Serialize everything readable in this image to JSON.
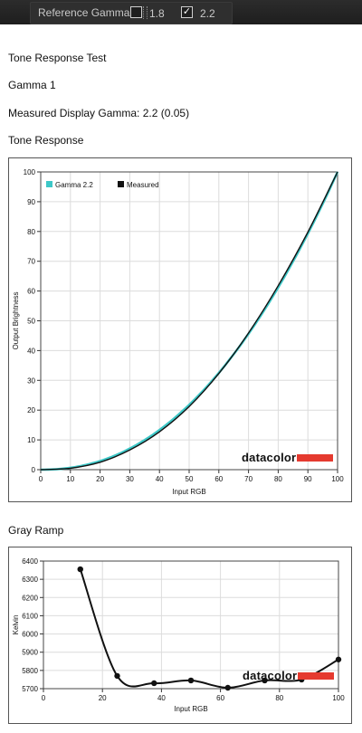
{
  "toolbar": {
    "reference_gamma_label": "Reference Gamma:",
    "option_18": {
      "label": "1.8",
      "checked": false
    },
    "option_22": {
      "label": "2.2",
      "checked": true,
      "check_glyph": "✓"
    }
  },
  "sections": {
    "test_title": "Tone Response Test",
    "gamma_title": "Gamma 1",
    "measured_text": "Measured Display Gamma: 2.2 (0.05)",
    "tone_title": "Tone Response",
    "gray_title": "Gray Ramp"
  },
  "logo_text": "datacolor",
  "colors": {
    "reference": "#3cc7c7",
    "measured": "#111111",
    "logo_bar": "#e53a2f"
  },
  "chart_data": [
    {
      "type": "line",
      "xlabel": "Input RGB",
      "ylabel": "Output Brightness",
      "xlim": [
        0,
        100
      ],
      "ylim": [
        0,
        100
      ],
      "x_ticks": [
        "0",
        "10",
        "20",
        "30",
        "40",
        "50",
        "60",
        "70",
        "80",
        "90",
        "100"
      ],
      "y_ticks": [
        "0",
        "10",
        "20",
        "30",
        "40",
        "50",
        "60",
        "70",
        "80",
        "90",
        "100"
      ],
      "grid": true,
      "legend": "top-left",
      "series": [
        {
          "name": "Gamma 2.2",
          "color": "#3cc7c7",
          "gamma": 2.2,
          "x": [
            0,
            10,
            20,
            30,
            40,
            50,
            60,
            70,
            80,
            90,
            100
          ],
          "y": [
            0,
            0.6,
            2.9,
            7.1,
            13.3,
            21.8,
            32.5,
            45.6,
            61.2,
            79.3,
            100
          ]
        },
        {
          "name": "Measured",
          "color": "#111111",
          "x": [
            0,
            10,
            20,
            30,
            40,
            50,
            60,
            70,
            80,
            90,
            100
          ],
          "y": [
            0,
            0.5,
            2.5,
            6.6,
            12.7,
            21.2,
            32.3,
            45.9,
            61.8,
            79.8,
            100
          ]
        }
      ]
    },
    {
      "type": "line",
      "xlabel": "Input RGB",
      "ylabel": "Kelvin",
      "xlim": [
        0,
        100
      ],
      "ylim": [
        5700,
        6400
      ],
      "x_ticks": [
        "0",
        "20",
        "40",
        "60",
        "80",
        "100"
      ],
      "y_ticks": [
        "5700",
        "5800",
        "5900",
        "6000",
        "6100",
        "6200",
        "6300",
        "6400"
      ],
      "grid": true,
      "series": [
        {
          "name": "",
          "color": "#111111",
          "x": [
            12.5,
            25,
            37.5,
            50,
            62.5,
            75,
            87.5,
            100
          ],
          "y": [
            6355,
            5770,
            5730,
            5745,
            5705,
            5745,
            5750,
            5860
          ]
        }
      ]
    }
  ]
}
